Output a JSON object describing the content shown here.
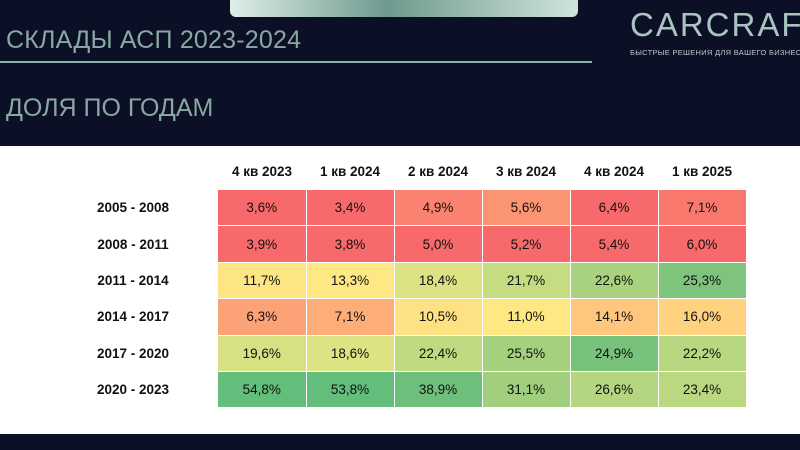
{
  "header": {
    "title": "СКЛАДЫ АСП 2023-2024",
    "subtitle": "ДОЛЯ ПО ГОДАМ"
  },
  "logo": {
    "name": "CARCRAFT",
    "tagline": "БЫСТРЫЕ РЕШЕНИЯ ДЛЯ ВАШЕГО БИЗНЕСА"
  },
  "colors": {
    "background": "#0b1026",
    "accent": "#8aa8a3"
  },
  "table": {
    "columns": [
      "4 кв 2023",
      "1 кв 2024",
      "2 кв 2024",
      "3 кв 2024",
      "4 кв 2024",
      "1 кв 2025"
    ],
    "rows": [
      {
        "label": "2005 - 2008",
        "values": [
          "3,6%",
          "3,4%",
          "4,9%",
          "5,6%",
          "6,4%",
          "7,1%"
        ],
        "colors": [
          "#f8696b",
          "#f8696b",
          "#f98370",
          "#fa9473",
          "#f8696b",
          "#f8786e"
        ]
      },
      {
        "label": "2008 - 2011",
        "values": [
          "3,9%",
          "3,8%",
          "5,0%",
          "5,2%",
          "5,4%",
          "6,0%"
        ],
        "colors": [
          "#f8696b",
          "#f8696b",
          "#f8696b",
          "#f8696b",
          "#f8696b",
          "#f8696b"
        ]
      },
      {
        "label": "2011 - 2014",
        "values": [
          "11,7%",
          "13,3%",
          "18,4%",
          "21,7%",
          "22,6%",
          "25,3%"
        ],
        "colors": [
          "#fee583",
          "#fee883",
          "#dde282",
          "#c5dc81",
          "#a9d27f",
          "#7fc47c"
        ]
      },
      {
        "label": "2014 - 2017",
        "values": [
          "6,3%",
          "7,1%",
          "10,5%",
          "11,0%",
          "14,1%",
          "16,0%"
        ],
        "colors": [
          "#fba276",
          "#fcad78",
          "#fee182",
          "#fee883",
          "#ffc77d",
          "#ffd280"
        ]
      },
      {
        "label": "2017 - 2020",
        "values": [
          "19,6%",
          "18,6%",
          "22,4%",
          "25,5%",
          "24,9%",
          "22,2%"
        ],
        "colors": [
          "#d7e082",
          "#dde282",
          "#c0da81",
          "#a5d17f",
          "#78c27c",
          "#b7d780"
        ]
      },
      {
        "label": "2020 - 2023",
        "values": [
          "54,8%",
          "53,8%",
          "38,9%",
          "31,1%",
          "26,6%",
          "23,4%"
        ],
        "colors": [
          "#63be7b",
          "#63be7b",
          "#6cc07b",
          "#a1cf7e",
          "#b5d680",
          "#b9d880"
        ]
      }
    ]
  }
}
